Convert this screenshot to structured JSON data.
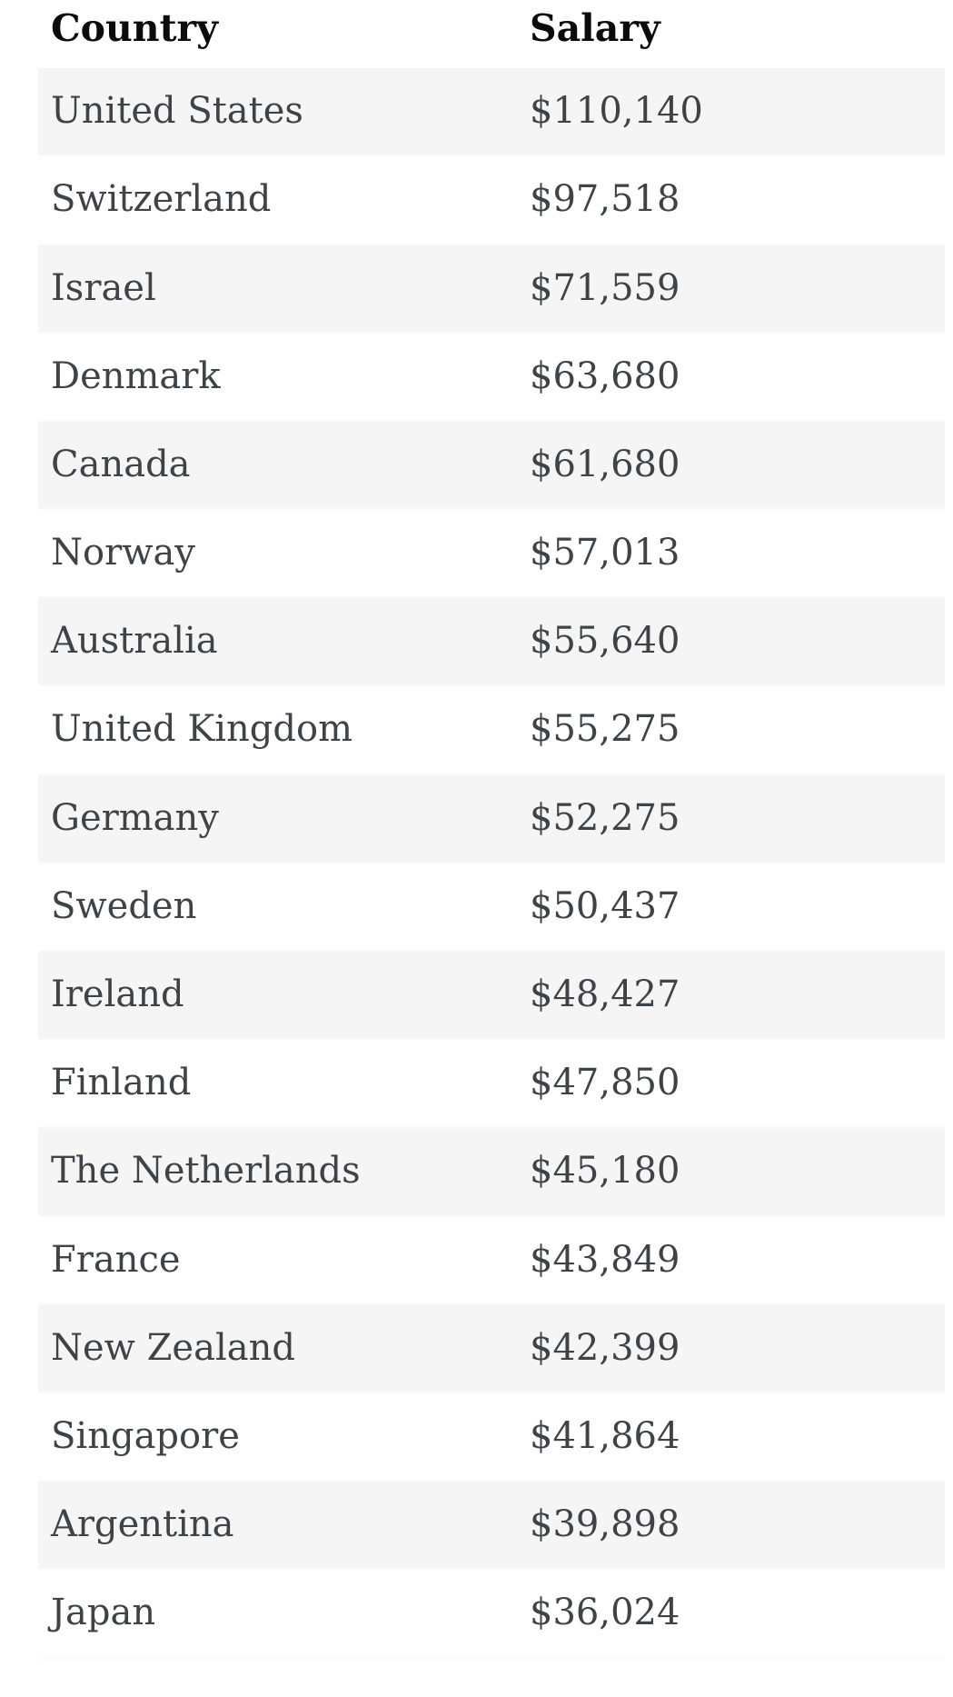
{
  "colors": {
    "page_bg": "#ffffff",
    "stripe": "#f5f5f5",
    "row_divider": "#fafafa",
    "body_text": "#3e4347",
    "header_text": "#0b0b0b"
  },
  "chart_data": {
    "type": "table",
    "columns": [
      "Country",
      "Salary"
    ],
    "rows": [
      [
        "United States",
        "$110,140"
      ],
      [
        "Switzerland",
        "$97,518"
      ],
      [
        "Israel",
        "$71,559"
      ],
      [
        "Denmark",
        "$63,680"
      ],
      [
        "Canada",
        "$61,680"
      ],
      [
        "Norway",
        "$57,013"
      ],
      [
        "Australia",
        "$55,640"
      ],
      [
        "United Kingdom",
        "$55,275"
      ],
      [
        "Germany",
        "$52,275"
      ],
      [
        "Sweden",
        "$50,437"
      ],
      [
        "Ireland",
        "$48,427"
      ],
      [
        "Finland",
        "$47,850"
      ],
      [
        "The Netherlands",
        "$45,180"
      ],
      [
        "France",
        "$43,849"
      ],
      [
        "New Zealand",
        "$42,399"
      ],
      [
        "Singapore",
        "$41,864"
      ],
      [
        "Argentina",
        "$39,898"
      ],
      [
        "Japan",
        "$36,024"
      ]
    ],
    "salary_values_usd": [
      110140,
      97518,
      71559,
      63680,
      61680,
      57013,
      55640,
      55275,
      52275,
      50437,
      48427,
      47850,
      45180,
      43849,
      42399,
      41864,
      39898,
      36024
    ],
    "layout": {
      "stripe_pattern": "odd-rows-shaded",
      "first_data_row_shaded": true,
      "header_background": "none"
    }
  }
}
